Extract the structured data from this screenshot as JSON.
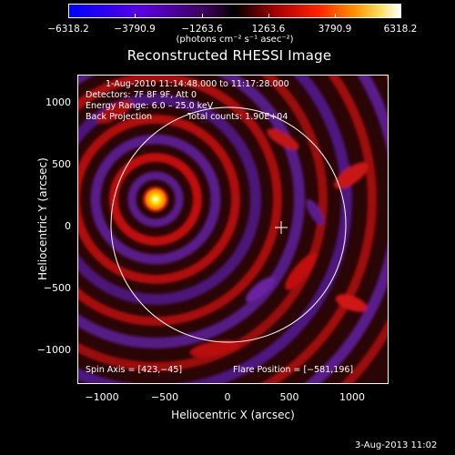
{
  "title": "Reconstructed RHESSI Image",
  "colorbar": {
    "labels": [
      "−6318.2",
      "−3790.9",
      "−1263.6",
      "1263.6",
      "3790.9",
      "6318.2"
    ],
    "units": "(photons cm⁻² s⁻¹ asec⁻²)",
    "range": [
      -6318.2,
      6318.2
    ]
  },
  "info": {
    "time": "1-Aug-2010 11:14:48.000 to 11:17:28.000",
    "detectors": "Detectors: 7F 8F 9F, Att 0",
    "energy": "Energy Range: 6.0 – 25.0 keV",
    "method": "Back Projection",
    "counts": "Total counts: 1.90E+04"
  },
  "footer": {
    "spin_axis": "Spin Axis = [423,−45]",
    "flare_position": "Flare Position = [−581,196]"
  },
  "axes": {
    "xlabel": "Heliocentric X (arcsec)",
    "ylabel": "Heliocentric Y (arcsec)",
    "xticks": [
      "−1000",
      "−500",
      "0",
      "500",
      "1000"
    ],
    "yticks": [
      "1000",
      "500",
      "0",
      "−500",
      "−1000"
    ]
  },
  "timestamp": "3-Aug-2013 11:02"
}
